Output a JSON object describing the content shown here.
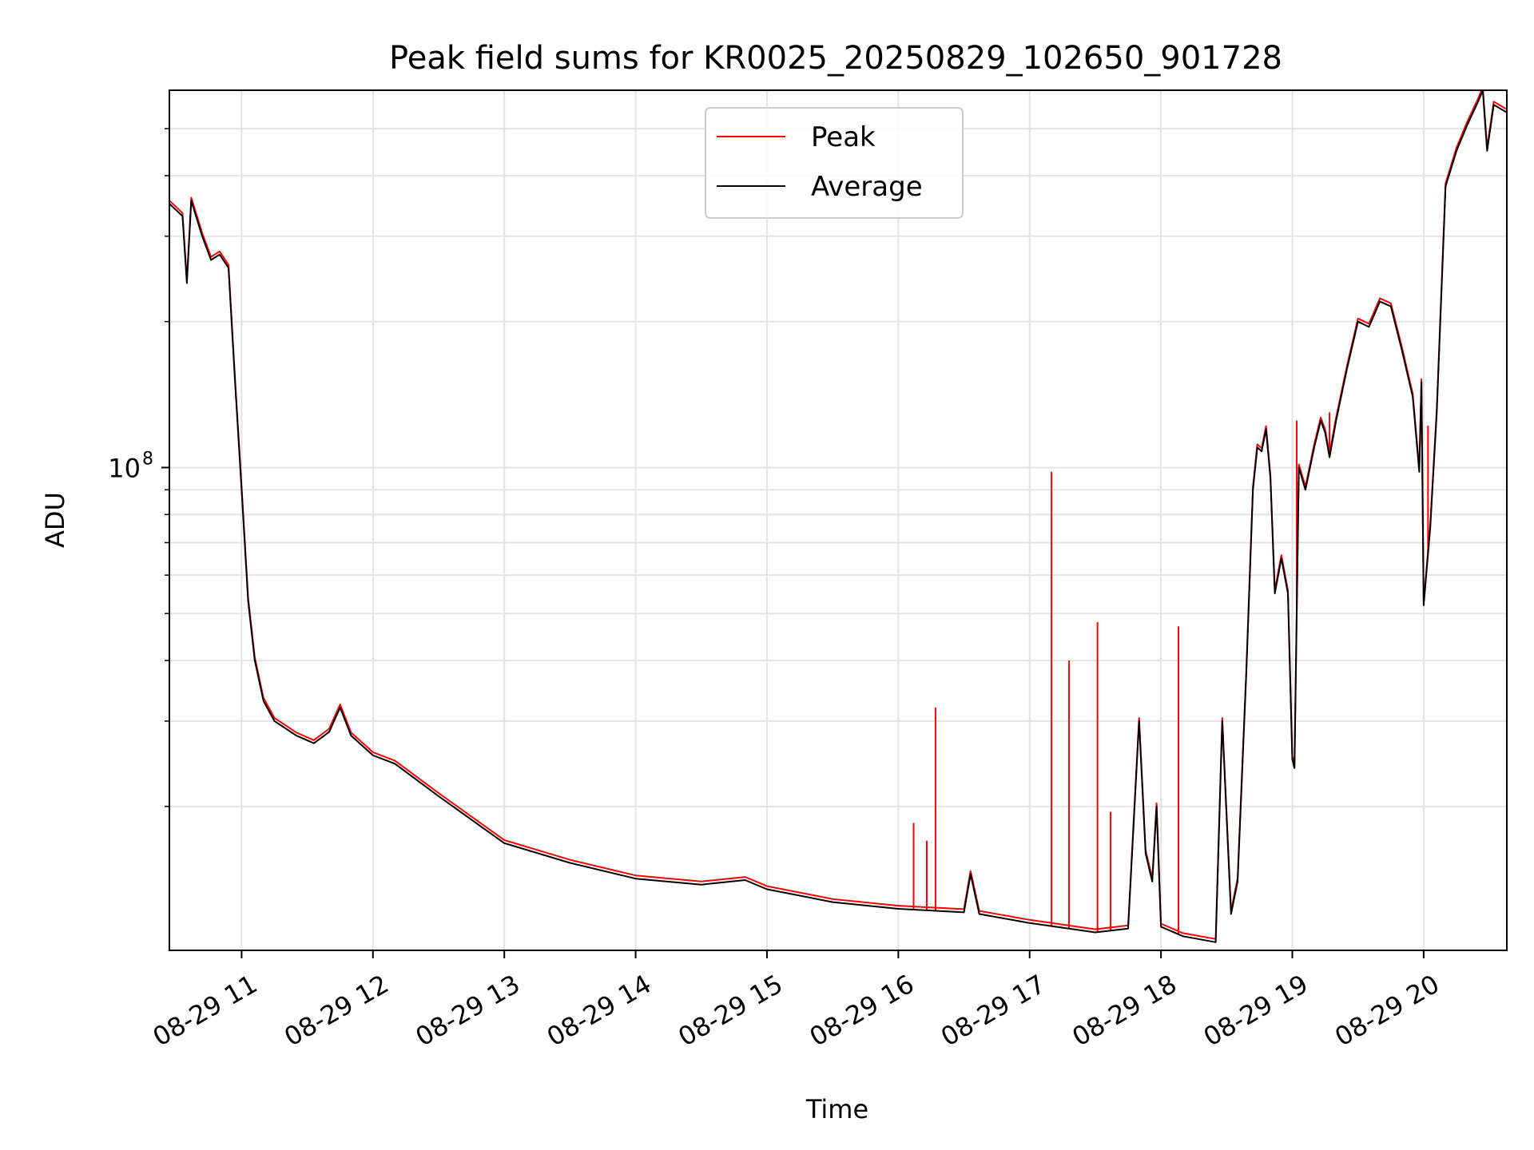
{
  "chart_data": {
    "type": "line",
    "title": "Peak field sums for KR0025_20250829_102650_901728",
    "xlabel": "Time",
    "ylabel": "ADU",
    "y_scale": "log",
    "grid": true,
    "legend_position": "upper center",
    "xlim": [
      "2025-08-29 10:27",
      "2025-08-29 20:38"
    ],
    "ylim": [
      10100000,
      600000000
    ],
    "x_ticks": [
      {
        "value": "2025-08-29 11:00",
        "label": "08-29 11"
      },
      {
        "value": "2025-08-29 12:00",
        "label": "08-29 12"
      },
      {
        "value": "2025-08-29 13:00",
        "label": "08-29 13"
      },
      {
        "value": "2025-08-29 14:00",
        "label": "08-29 14"
      },
      {
        "value": "2025-08-29 15:00",
        "label": "08-29 15"
      },
      {
        "value": "2025-08-29 16:00",
        "label": "08-29 16"
      },
      {
        "value": "2025-08-29 17:00",
        "label": "08-29 17"
      },
      {
        "value": "2025-08-29 18:00",
        "label": "08-29 18"
      },
      {
        "value": "2025-08-29 19:00",
        "label": "08-29 19"
      },
      {
        "value": "2025-08-29 20:00",
        "label": "08-29 20"
      }
    ],
    "y_ticks": [
      {
        "value": 100000000,
        "label_base": "10",
        "label_exp": "8"
      }
    ],
    "y_minor_ticks": [
      20000000,
      30000000,
      40000000,
      50000000,
      60000000,
      70000000,
      80000000,
      90000000,
      200000000,
      300000000,
      400000000,
      500000000
    ],
    "series": [
      {
        "name": "Average",
        "color": "#000000",
        "points": [
          [
            "2025-08-29 10:27",
            350000000
          ],
          [
            "2025-08-29 10:30",
            340000000
          ],
          [
            "2025-08-29 10:33",
            330000000
          ],
          [
            "2025-08-29 10:35",
            240000000
          ],
          [
            "2025-08-29 10:37",
            355000000
          ],
          [
            "2025-08-29 10:42",
            300000000
          ],
          [
            "2025-08-29 10:46",
            268000000
          ],
          [
            "2025-08-29 10:50",
            275000000
          ],
          [
            "2025-08-29 10:54",
            258000000
          ],
          [
            "2025-08-29 10:57",
            150000000
          ],
          [
            "2025-08-29 11:00",
            90000000
          ],
          [
            "2025-08-29 11:03",
            53000000
          ],
          [
            "2025-08-29 11:06",
            40000000
          ],
          [
            "2025-08-29 11:10",
            33000000
          ],
          [
            "2025-08-29 11:15",
            30000000
          ],
          [
            "2025-08-29 11:25",
            28000000
          ],
          [
            "2025-08-29 11:33",
            27000000
          ],
          [
            "2025-08-29 11:40",
            28500000
          ],
          [
            "2025-08-29 11:45",
            32000000
          ],
          [
            "2025-08-29 11:50",
            28000000
          ],
          [
            "2025-08-29 12:00",
            25500000
          ],
          [
            "2025-08-29 12:10",
            24500000
          ],
          [
            "2025-08-29 12:30",
            21000000
          ],
          [
            "2025-08-29 13:00",
            16800000
          ],
          [
            "2025-08-29 13:30",
            15300000
          ],
          [
            "2025-08-29 14:00",
            14200000
          ],
          [
            "2025-08-29 14:30",
            13800000
          ],
          [
            "2025-08-29 14:50",
            14100000
          ],
          [
            "2025-08-29 15:00",
            13500000
          ],
          [
            "2025-08-29 15:30",
            12700000
          ],
          [
            "2025-08-29 16:00",
            12300000
          ],
          [
            "2025-08-29 16:30",
            12100000
          ],
          [
            "2025-08-29 16:33",
            14500000
          ],
          [
            "2025-08-29 16:37",
            12000000
          ],
          [
            "2025-08-29 17:00",
            11500000
          ],
          [
            "2025-08-29 17:30",
            11000000
          ],
          [
            "2025-08-29 17:45",
            11200000
          ],
          [
            "2025-08-29 17:50",
            30000000
          ],
          [
            "2025-08-29 17:53",
            16000000
          ],
          [
            "2025-08-29 17:56",
            14000000
          ],
          [
            "2025-08-29 17:58",
            20000000
          ],
          [
            "2025-08-29 18:00",
            11300000
          ],
          [
            "2025-08-29 18:10",
            10800000
          ],
          [
            "2025-08-29 18:25",
            10500000
          ],
          [
            "2025-08-29 18:28",
            30000000
          ],
          [
            "2025-08-29 18:32",
            12000000
          ],
          [
            "2025-08-29 18:35",
            14000000
          ],
          [
            "2025-08-29 18:39",
            38000000
          ],
          [
            "2025-08-29 18:42",
            90000000
          ],
          [
            "2025-08-29 18:44",
            110000000
          ],
          [
            "2025-08-29 18:46",
            108000000
          ],
          [
            "2025-08-29 18:48",
            120000000
          ],
          [
            "2025-08-29 18:50",
            95000000
          ],
          [
            "2025-08-29 18:52",
            55000000
          ],
          [
            "2025-08-29 18:55",
            65000000
          ],
          [
            "2025-08-29 18:58",
            55000000
          ],
          [
            "2025-08-29 19:00",
            25000000
          ],
          [
            "2025-08-29 19:01",
            24000000
          ],
          [
            "2025-08-29 19:03",
            100000000
          ],
          [
            "2025-08-29 19:06",
            90000000
          ],
          [
            "2025-08-29 19:10",
            110000000
          ],
          [
            "2025-08-29 19:13",
            125000000
          ],
          [
            "2025-08-29 19:15",
            118000000
          ],
          [
            "2025-08-29 19:17",
            105000000
          ],
          [
            "2025-08-29 19:20",
            125000000
          ],
          [
            "2025-08-29 19:25",
            160000000
          ],
          [
            "2025-08-29 19:30",
            200000000
          ],
          [
            "2025-08-29 19:35",
            195000000
          ],
          [
            "2025-08-29 19:40",
            220000000
          ],
          [
            "2025-08-29 19:45",
            215000000
          ],
          [
            "2025-08-29 19:50",
            175000000
          ],
          [
            "2025-08-29 19:55",
            140000000
          ],
          [
            "2025-08-29 19:58",
            98000000
          ],
          [
            "2025-08-29 19:59",
            150000000
          ],
          [
            "2025-08-29 20:00",
            52000000
          ],
          [
            "2025-08-29 20:03",
            75000000
          ],
          [
            "2025-08-29 20:06",
            130000000
          ],
          [
            "2025-08-29 20:10",
            380000000
          ],
          [
            "2025-08-29 20:15",
            450000000
          ],
          [
            "2025-08-29 20:20",
            510000000
          ],
          [
            "2025-08-29 20:25",
            570000000
          ],
          [
            "2025-08-29 20:27",
            600000000
          ],
          [
            "2025-08-29 20:29",
            450000000
          ],
          [
            "2025-08-29 20:32",
            560000000
          ],
          [
            "2025-08-29 20:38",
            540000000
          ]
        ]
      },
      {
        "name": "Peak",
        "color": "#ff0000",
        "spikes": [
          [
            "2025-08-29 16:07",
            18500000
          ],
          [
            "2025-08-29 16:13",
            17000000
          ],
          [
            "2025-08-29 16:17",
            32000000
          ],
          [
            "2025-08-29 17:10",
            98000000
          ],
          [
            "2025-08-29 17:18",
            40000000
          ],
          [
            "2025-08-29 17:31",
            48000000
          ],
          [
            "2025-08-29 17:37",
            19500000
          ],
          [
            "2025-08-29 18:08",
            47000000
          ],
          [
            "2025-08-29 19:02",
            125000000
          ],
          [
            "2025-08-29 19:17",
            130000000
          ],
          [
            "2025-08-29 20:02",
            122000000
          ]
        ]
      }
    ]
  }
}
